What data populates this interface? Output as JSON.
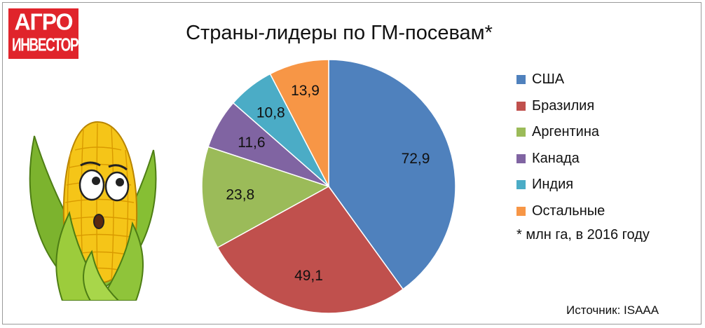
{
  "logo": {
    "line1": "АГРО",
    "line2": "ИНВЕСТОР"
  },
  "title": "Страны-лидеры по ГМ-посевам*",
  "note": "* млн га, в 2016 году",
  "source": "Источник: ISAAA",
  "colors": {
    "usa": "#4f81bd",
    "brazil": "#c0504d",
    "argentina": "#9bbb59",
    "canada": "#8064a2",
    "india": "#4bacc6",
    "other": "#f79646",
    "logo_red": "#e0242b"
  },
  "chart_data": {
    "type": "pie",
    "title": "Страны-лидеры по ГМ-посевам*",
    "categories": [
      "США",
      "Бразилия",
      "Аргентина",
      "Канада",
      "Индия",
      "Остальные"
    ],
    "values": [
      72.9,
      49.1,
      23.8,
      11.6,
      10.8,
      13.9
    ],
    "value_labels": [
      "72,9",
      "49,1",
      "23,8",
      "11,6",
      "10,8",
      "13,9"
    ],
    "colors": [
      "#4f81bd",
      "#c0504d",
      "#9bbb59",
      "#8064a2",
      "#4bacc6",
      "#f79646"
    ],
    "legend_position": "right",
    "start_angle": "top, clockwise"
  }
}
